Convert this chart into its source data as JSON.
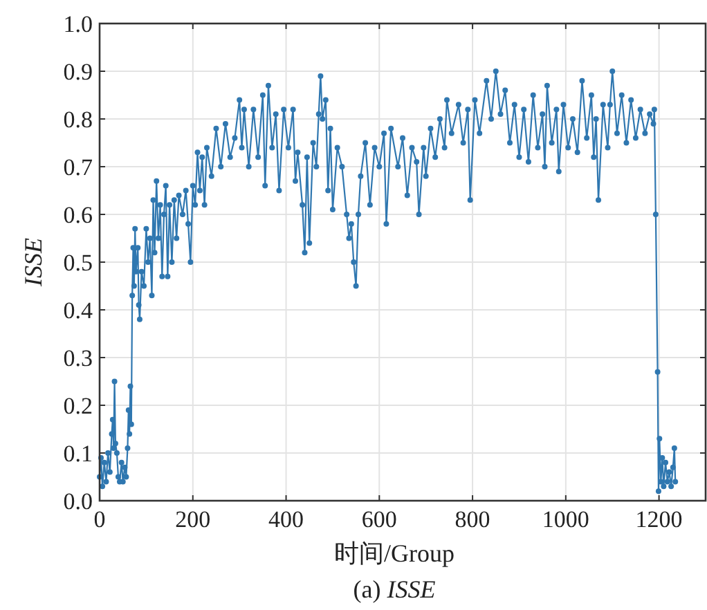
{
  "chart_data": {
    "type": "line",
    "xlabel": "时间/Group",
    "ylabel": "*ISSE*",
    "annotations": [
      "(a) *ISSE*"
    ],
    "xlim": [
      0,
      1300
    ],
    "ylim": [
      0,
      1
    ],
    "xticks": [
      0,
      200,
      400,
      600,
      800,
      1000,
      1200
    ],
    "yticks": [
      {
        "value": 0,
        "label": "0.0"
      },
      0.1,
      0.2,
      0.3,
      0.4,
      0.5,
      0.6,
      0.7,
      0.8,
      0.9,
      {
        "value": 1,
        "label": "1.0"
      }
    ],
    "grid": true,
    "marker": "circle",
    "line_style": "solid",
    "series": [
      {
        "color": "#2f77b0",
        "x": [
          0,
          3,
          6,
          10,
          14,
          18,
          22,
          26,
          28,
          30,
          32,
          34,
          37,
          40,
          43,
          47,
          50,
          54,
          57,
          60,
          62,
          64,
          66,
          68,
          70,
          72,
          74,
          76,
          78,
          82,
          84,
          86,
          90,
          95,
          100,
          104,
          108,
          112,
          115,
          118,
          122,
          126,
          130,
          134,
          138,
          142,
          146,
          150,
          155,
          160,
          165,
          170,
          178,
          185,
          190,
          195,
          200,
          205,
          210,
          215,
          220,
          225,
          230,
          240,
          250,
          260,
          270,
          280,
          290,
          300,
          305,
          310,
          320,
          330,
          340,
          350,
          355,
          362,
          370,
          378,
          385,
          395,
          405,
          415,
          420,
          425,
          435,
          440,
          445,
          450,
          458,
          465,
          470,
          474,
          478,
          485,
          490,
          495,
          500,
          510,
          520,
          530,
          535,
          540,
          545,
          550,
          555,
          560,
          570,
          580,
          590,
          600,
          610,
          615,
          625,
          640,
          650,
          660,
          670,
          680,
          685,
          695,
          700,
          710,
          720,
          730,
          740,
          745,
          755,
          770,
          780,
          790,
          795,
          805,
          815,
          830,
          840,
          850,
          860,
          870,
          880,
          890,
          900,
          910,
          920,
          930,
          940,
          950,
          955,
          960,
          970,
          980,
          985,
          995,
          1005,
          1015,
          1025,
          1035,
          1045,
          1055,
          1060,
          1065,
          1070,
          1080,
          1090,
          1095,
          1100,
          1110,
          1120,
          1130,
          1140,
          1150,
          1160,
          1170,
          1180,
          1188,
          1190,
          1193,
          1197,
          1199,
          1201,
          1204,
          1207,
          1210,
          1214,
          1218,
          1222,
          1226,
          1230,
          1233,
          1235
        ],
        "values": [
          0.05,
          0.09,
          0.03,
          0.08,
          0.04,
          0.1,
          0.06,
          0.14,
          0.17,
          0.11,
          0.25,
          0.12,
          0.1,
          0.05,
          0.04,
          0.08,
          0.04,
          0.07,
          0.05,
          0.11,
          0.19,
          0.14,
          0.24,
          0.16,
          0.43,
          0.53,
          0.45,
          0.57,
          0.48,
          0.53,
          0.41,
          0.38,
          0.48,
          0.45,
          0.57,
          0.5,
          0.55,
          0.43,
          0.63,
          0.52,
          0.67,
          0.55,
          0.62,
          0.47,
          0.6,
          0.66,
          0.47,
          0.62,
          0.5,
          0.63,
          0.55,
          0.64,
          0.6,
          0.65,
          0.58,
          0.5,
          0.66,
          0.62,
          0.73,
          0.65,
          0.72,
          0.62,
          0.74,
          0.68,
          0.78,
          0.7,
          0.79,
          0.72,
          0.76,
          0.84,
          0.74,
          0.82,
          0.7,
          0.82,
          0.72,
          0.85,
          0.66,
          0.87,
          0.74,
          0.81,
          0.65,
          0.82,
          0.74,
          0.82,
          0.67,
          0.73,
          0.62,
          0.52,
          0.72,
          0.54,
          0.75,
          0.7,
          0.81,
          0.89,
          0.8,
          0.84,
          0.65,
          0.78,
          0.61,
          0.74,
          0.7,
          0.6,
          0.55,
          0.58,
          0.5,
          0.45,
          0.6,
          0.68,
          0.75,
          0.62,
          0.74,
          0.7,
          0.77,
          0.58,
          0.78,
          0.7,
          0.76,
          0.64,
          0.74,
          0.71,
          0.6,
          0.74,
          0.68,
          0.78,
          0.72,
          0.8,
          0.74,
          0.84,
          0.77,
          0.83,
          0.75,
          0.82,
          0.63,
          0.84,
          0.77,
          0.88,
          0.8,
          0.9,
          0.81,
          0.86,
          0.75,
          0.83,
          0.72,
          0.82,
          0.71,
          0.85,
          0.74,
          0.81,
          0.7,
          0.87,
          0.75,
          0.82,
          0.69,
          0.83,
          0.74,
          0.8,
          0.73,
          0.88,
          0.76,
          0.85,
          0.72,
          0.8,
          0.63,
          0.83,
          0.74,
          0.83,
          0.9,
          0.77,
          0.85,
          0.75,
          0.84,
          0.76,
          0.82,
          0.77,
          0.81,
          0.79,
          0.82,
          0.6,
          0.27,
          0.02,
          0.13,
          0.04,
          0.09,
          0.03,
          0.08,
          0.04,
          0.06,
          0.03,
          0.07,
          0.11,
          0.04
        ]
      }
    ]
  }
}
